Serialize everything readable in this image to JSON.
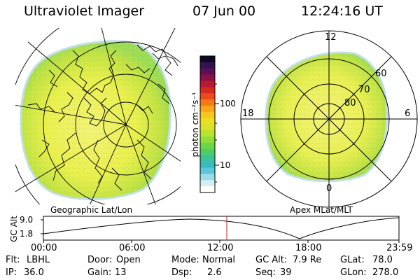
{
  "header": {
    "instrument": "Ultraviolet Imager",
    "date": "07 Jun 00",
    "time": "12:24:16 UT"
  },
  "colorbar": {
    "label": "photon cm⁻²s⁻¹",
    "ticks": [
      "100",
      "10"
    ],
    "colors": [
      "#0b0a22",
      "#33134f",
      "#5a0f56",
      "#8a1046",
      "#b51a30",
      "#d82820",
      "#e94c1a",
      "#f57a16",
      "#f8a51a",
      "#f6c61d",
      "#eedd25",
      "#d7e32b",
      "#b7e332",
      "#8fde3a",
      "#69d648",
      "#4ccd68",
      "#3ac394",
      "#39bac0",
      "#58c7d8",
      "#9cdbe8",
      "#d5eef3",
      "#ffffff"
    ]
  },
  "left_panel": {
    "caption": "Geographic Lat/Lon"
  },
  "right_panel": {
    "caption": "Apex MLat/MLT",
    "mlt_labels": {
      "top": "12",
      "left": "18",
      "right": "6",
      "bottom": "0"
    },
    "lat_labels": [
      "60",
      "70",
      "80"
    ]
  },
  "timeline": {
    "axis_label": "GC Alt",
    "y_ticks": [
      "9.0",
      "1.8"
    ],
    "x_ticks": [
      "00:00",
      "06:00",
      "12:00",
      "18:00",
      "23:59"
    ],
    "cursor_time": "12:24:16"
  },
  "info": {
    "row1": [
      {
        "label": "Flt:",
        "value": "LBHL"
      },
      {
        "label": "Door:",
        "value": "Open"
      },
      {
        "label": "Mode:",
        "value": "Normal"
      },
      {
        "label": "GC Alt:",
        "value": "7.9 Re"
      },
      {
        "label": "GLat:",
        "value": "78.0"
      }
    ],
    "row2": [
      {
        "label": "IP:",
        "value": "36.0"
      },
      {
        "label": "Gain:",
        "value": "13"
      },
      {
        "label": "Dsp:",
        "value": "2.6"
      },
      {
        "label": "Seq:",
        "value": "39"
      },
      {
        "label": "GLon:",
        "value": "278.0"
      }
    ]
  }
}
